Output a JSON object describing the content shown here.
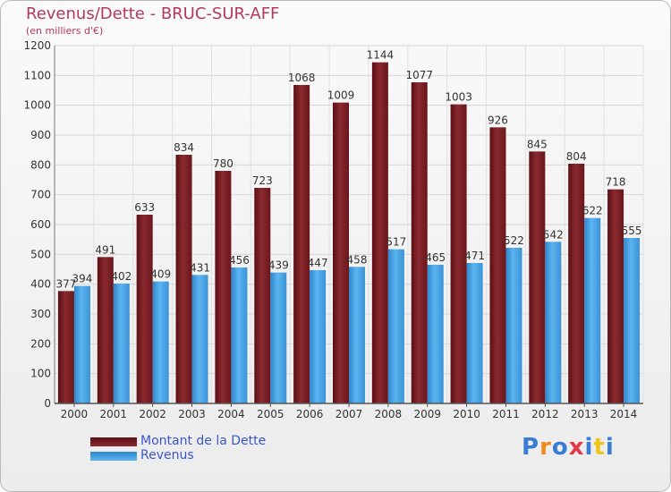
{
  "title": "Revenus/Dette - BRUC-SUR-AFF",
  "subtitle": "(en milliers d'€)",
  "colors": {
    "debt": "#7a1e24",
    "revenue": "#4aa6e8",
    "title": "#b2385f",
    "legend_text": "#3b56c9"
  },
  "legend": {
    "debt_label": "Montant de la Dette",
    "revenue_label": "Revenus"
  },
  "logo": {
    "text": "Proxiti"
  },
  "chart_data": {
    "type": "bar",
    "title": "Revenus/Dette - BRUC-SUR-AFF",
    "subtitle": "(en milliers d'€)",
    "xlabel": "",
    "ylabel": "",
    "ylim": [
      0,
      1200
    ],
    "yticks": [
      0,
      100,
      200,
      300,
      400,
      500,
      600,
      700,
      800,
      900,
      1000,
      1100,
      1200
    ],
    "grid": true,
    "legend_position": "bottom-left",
    "categories": [
      "2000",
      "2001",
      "2002",
      "2003",
      "2004",
      "2005",
      "2006",
      "2007",
      "2008",
      "2009",
      "2010",
      "2011",
      "2012",
      "2013",
      "2014"
    ],
    "series": [
      {
        "name": "Montant de la Dette",
        "values": [
          377,
          491,
          633,
          834,
          780,
          723,
          1068,
          1009,
          1144,
          1077,
          1003,
          926,
          845,
          804,
          718
        ]
      },
      {
        "name": "Revenus",
        "values": [
          394,
          402,
          409,
          431,
          456,
          439,
          447,
          458,
          517,
          465,
          471,
          522,
          542,
          622,
          555
        ]
      }
    ]
  }
}
